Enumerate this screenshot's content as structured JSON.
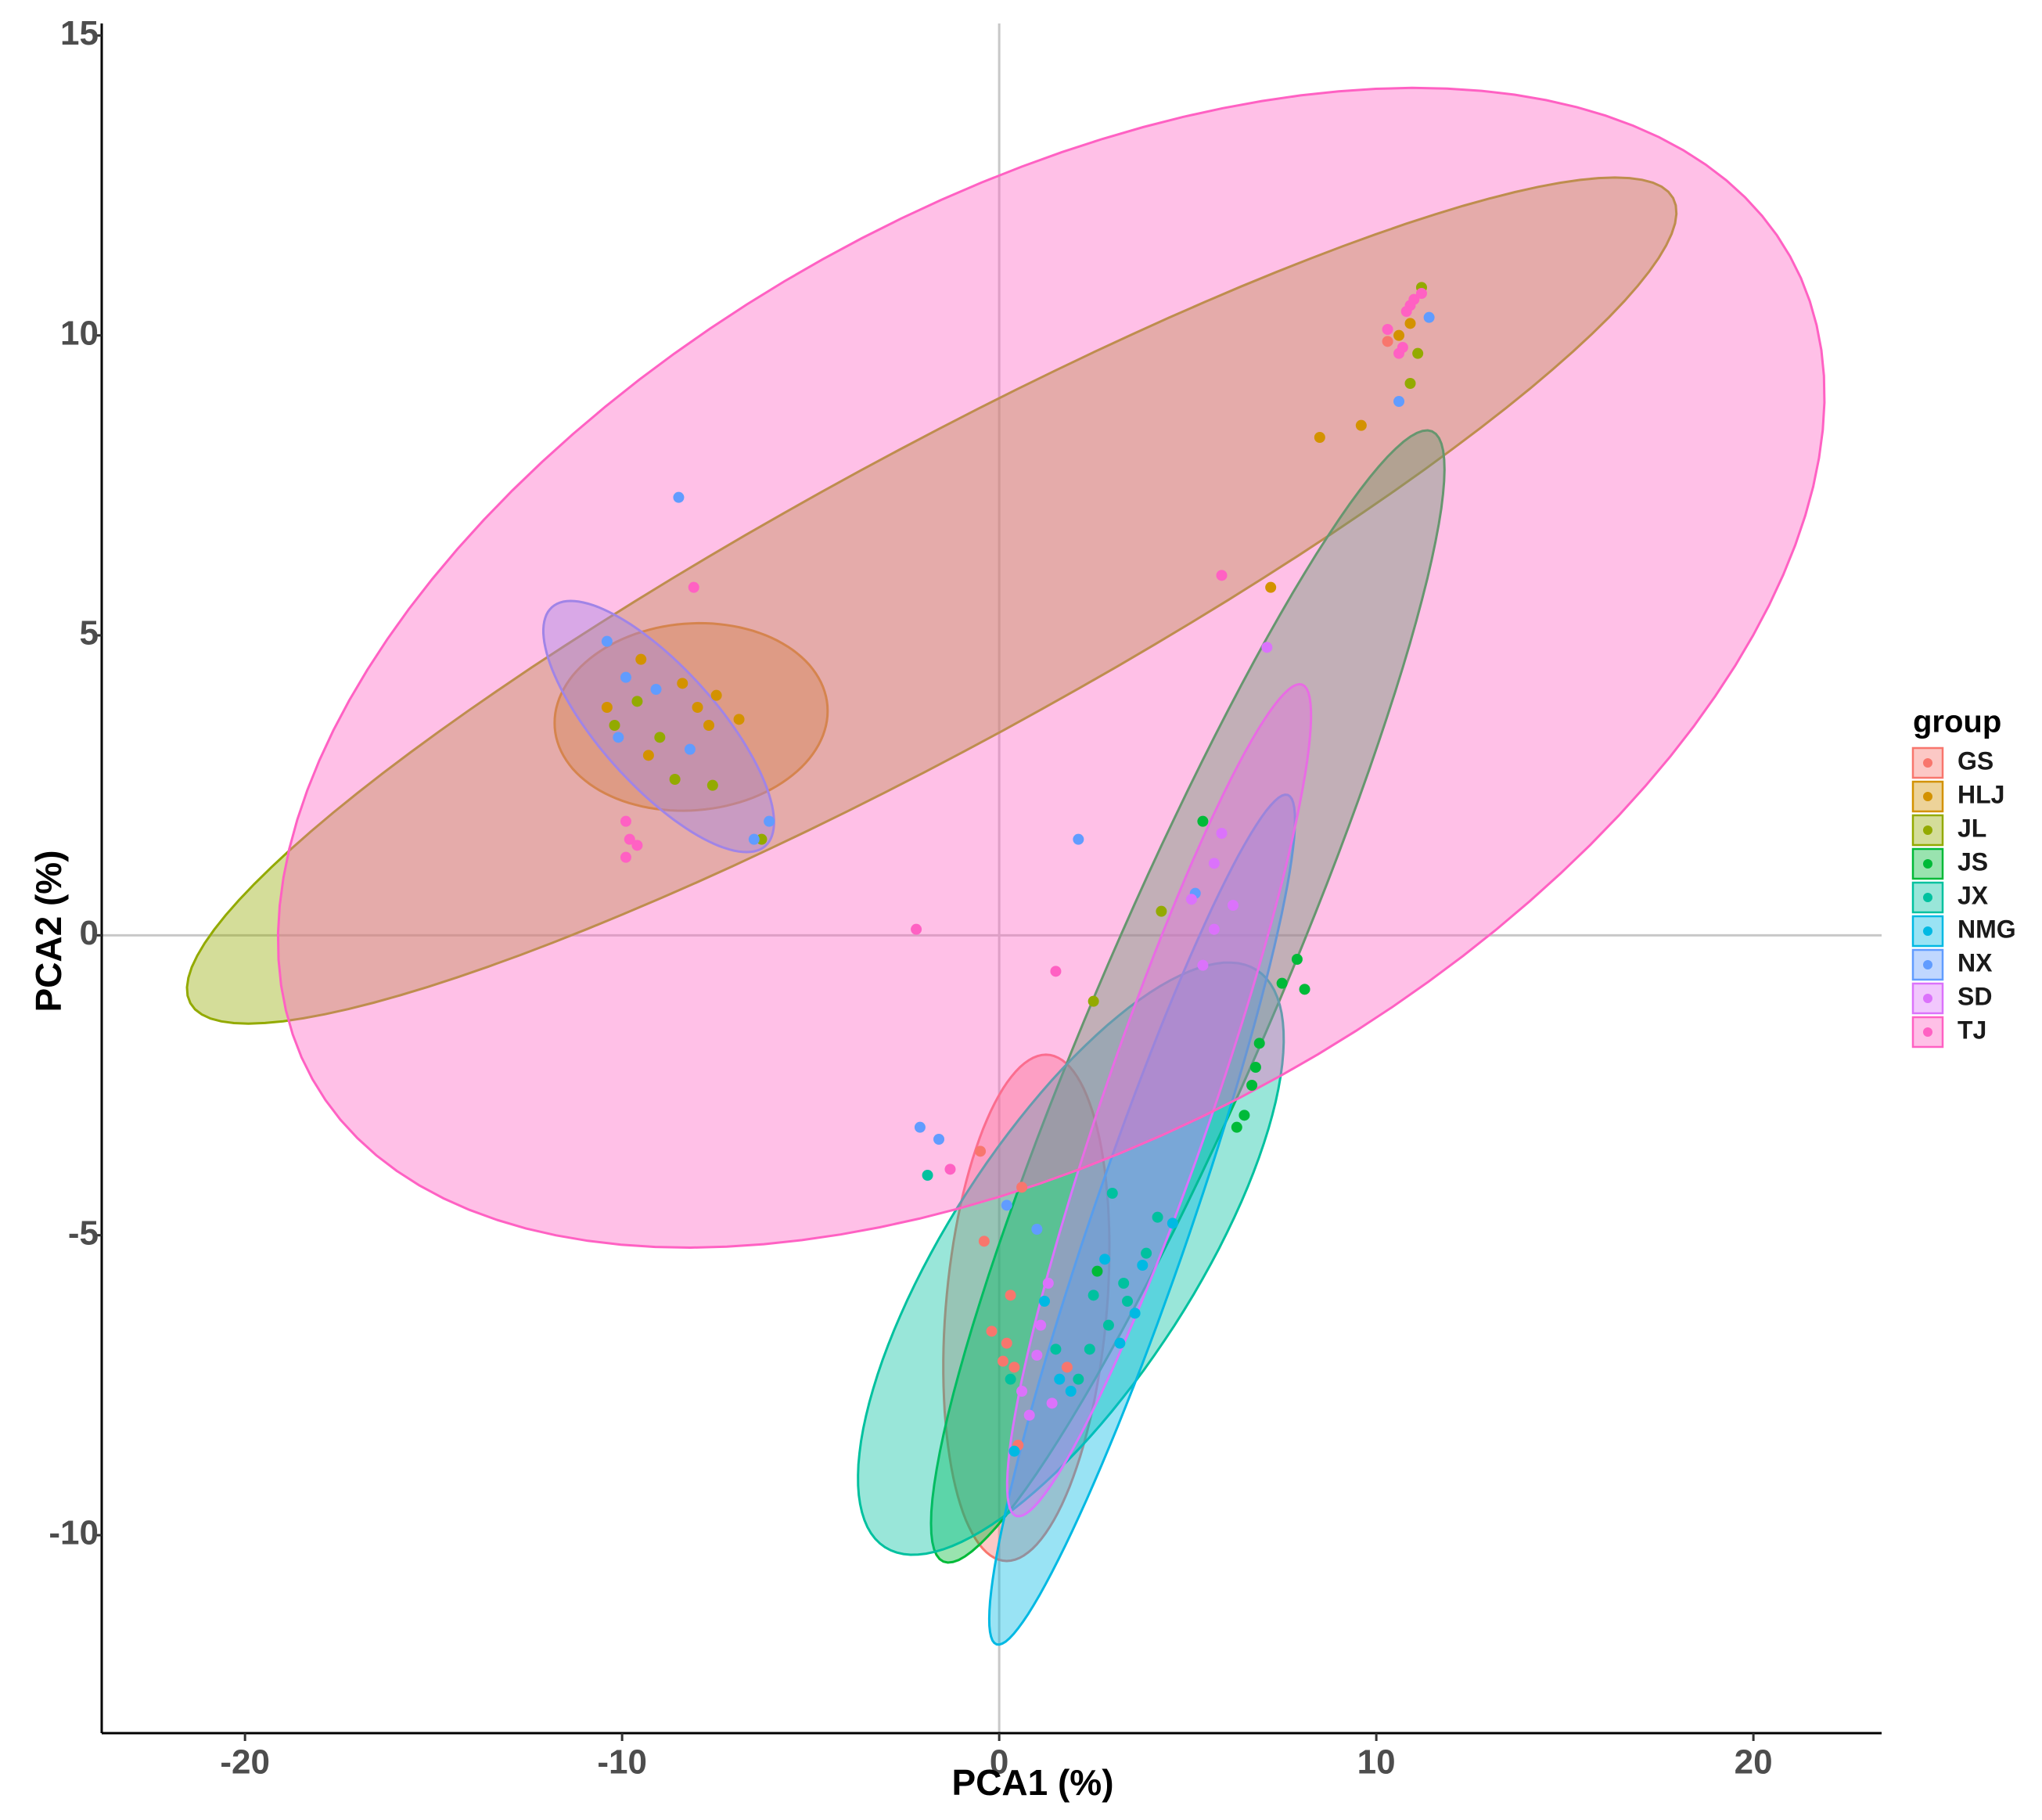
{
  "chart_data": {
    "type": "scatter",
    "x_label": "PCA1 (%)",
    "y_label": "PCA2 (%)",
    "legend_title": "group",
    "legend_position": "right",
    "xlim": [
      -23.8,
      23.4
    ],
    "ylim": [
      -13.3,
      15.2
    ],
    "xticks": [
      -20,
      -10,
      0,
      10,
      20
    ],
    "yticks": [
      -10,
      -5,
      0,
      5,
      10,
      15
    ],
    "zero_lines": true,
    "series": [
      {
        "name": "GS",
        "color": "#F8766D",
        "x": [
          0.2,
          0.4,
          -0.2,
          0.1,
          0.5,
          1.8,
          -0.5,
          -0.4,
          0.6,
          0.3,
          10.3
        ],
        "y": [
          -6.8,
          -7.2,
          -6.6,
          -7.1,
          -8.5,
          -7.2,
          -3.6,
          -5.1,
          -4.2,
          -6.0,
          9.9
        ],
        "ellipse": {
          "center": [
            0.72,
            -6.21
          ],
          "axis1": [
            0.52,
            4.22
          ],
          "axis2": [
            2.14,
            0.0
          ]
        }
      },
      {
        "name": "HLJ",
        "color": "#D39200",
        "x": [
          8.5,
          9.6,
          10.9,
          10.6,
          7.2,
          -9.5,
          -7.5,
          -8.4,
          -6.9,
          -8.0,
          -10.4,
          -7.7,
          -9.3
        ],
        "y": [
          8.3,
          8.5,
          10.2,
          10.0,
          5.8,
          4.6,
          4.0,
          4.2,
          3.6,
          3.8,
          3.8,
          3.5,
          3.0
        ],
        "ellipse": {
          "center": [
            -8.17,
            3.64
          ],
          "axis1": [
            3.62,
            0.1
          ],
          "axis2": [
            0.0,
            1.56
          ]
        }
      },
      {
        "name": "JL",
        "color": "#93AA00",
        "x": [
          11.1,
          10.9,
          11.2,
          -9.6,
          -9.0,
          -8.6,
          -7.6,
          -10.2,
          -6.3,
          2.5,
          4.3
        ],
        "y": [
          9.7,
          9.2,
          10.8,
          3.9,
          3.3,
          2.6,
          2.5,
          3.5,
          1.6,
          -1.1,
          0.4
        ],
        "ellipse": {
          "center": [
            -1.79,
            5.58
          ],
          "axis1": [
            19.66,
            6.71
          ],
          "axis2": [
            -1.88,
            2.17
          ]
        }
      },
      {
        "name": "JS",
        "color": "#00BA38",
        "x": [
          8.1,
          7.5,
          6.8,
          6.7,
          6.5,
          6.3,
          6.9,
          5.4,
          7.9,
          2.6
        ],
        "y": [
          -0.9,
          -0.8,
          -2.2,
          -2.5,
          -3.0,
          -3.2,
          -1.8,
          1.9,
          -0.4,
          -5.6
        ],
        "ellipse": {
          "center": [
            5.0,
            -1.02
          ],
          "axis1": [
            6.48,
            9.42
          ],
          "axis2": [
            2.09,
            -0.57
          ]
        }
      },
      {
        "name": "JX",
        "color": "#00C19F",
        "x": [
          -1.9,
          3.0,
          3.9,
          3.3,
          2.9,
          3.4,
          2.4,
          4.2,
          2.1,
          1.5,
          0.3,
          2.5
        ],
        "y": [
          -4.0,
          -4.3,
          -5.3,
          -5.8,
          -6.5,
          -6.1,
          -6.9,
          -4.7,
          -7.4,
          -6.9,
          -7.4,
          -6.0
        ],
        "ellipse": {
          "center": [
            1.9,
            -5.39
          ],
          "axis1": [
            4.93,
            4.81
          ],
          "axis2": [
            2.75,
            -1.11
          ]
        }
      },
      {
        "name": "NMG",
        "color": "#00B9E3",
        "x": [
          1.6,
          1.9,
          3.2,
          3.8,
          2.8,
          4.6,
          1.2,
          0.4,
          3.6
        ],
        "y": [
          -7.4,
          -7.6,
          -6.8,
          -5.5,
          -5.4,
          -4.8,
          -6.1,
          -8.6,
          -6.3
        ],
        "ellipse": {
          "center": [
            3.79,
            -4.74
          ],
          "axis1": [
            3.86,
            7.08
          ],
          "axis2": [
            1.24,
            -0.26
          ]
        }
      },
      {
        "name": "NX",
        "color": "#619CFF",
        "x": [
          -8.5,
          -10.4,
          -9.9,
          -10.1,
          -9.1,
          -8.2,
          -6.1,
          -6.5,
          2.1,
          -2.1,
          -1.6,
          10.6,
          11.4,
          0.2,
          1.0,
          5.2
        ],
        "y": [
          7.3,
          4.9,
          4.3,
          3.3,
          4.1,
          3.1,
          1.9,
          1.6,
          1.6,
          -3.2,
          -3.4,
          8.9,
          10.3,
          -4.5,
          -4.9,
          0.7
        ],
        "ellipse": {
          "center": [
            -9.03,
            3.48
          ],
          "axis1": [
            2.83,
            -1.99
          ],
          "axis2": [
            1.16,
            0.65
          ]
        }
      },
      {
        "name": "SD",
        "color": "#DB72FB",
        "x": [
          5.9,
          5.7,
          5.1,
          5.7,
          6.2,
          5.4,
          7.1,
          1.0,
          0.8,
          1.4,
          1.3,
          0.6,
          1.1
        ],
        "y": [
          1.7,
          1.2,
          0.6,
          0.1,
          0.5,
          -0.5,
          4.8,
          -7.0,
          -8.0,
          -7.8,
          -5.8,
          -7.6,
          -6.5
        ],
        "ellipse": {
          "center": [
            4.24,
            -2.75
          ],
          "axis1": [
            3.79,
            6.93
          ],
          "axis2": [
            1.37,
            -0.3
          ]
        }
      },
      {
        "name": "TJ",
        "color": "#FF61C3",
        "x": [
          10.9,
          11.0,
          11.2,
          10.8,
          10.6,
          10.7,
          10.3,
          -9.9,
          -9.8,
          -9.9,
          -9.6,
          -8.1,
          5.9,
          -2.2,
          1.5,
          -1.3
        ],
        "y": [
          10.5,
          10.6,
          10.7,
          10.4,
          9.7,
          9.8,
          10.1,
          1.9,
          1.6,
          1.3,
          1.5,
          5.8,
          6.0,
          0.1,
          -0.6,
          -3.9
        ],
        "ellipse": {
          "center": [
            1.38,
            4.46
          ],
          "axis1": [
            19.59,
            6.86
          ],
          "axis2": [
            -6.06,
            6.81
          ]
        }
      }
    ]
  }
}
